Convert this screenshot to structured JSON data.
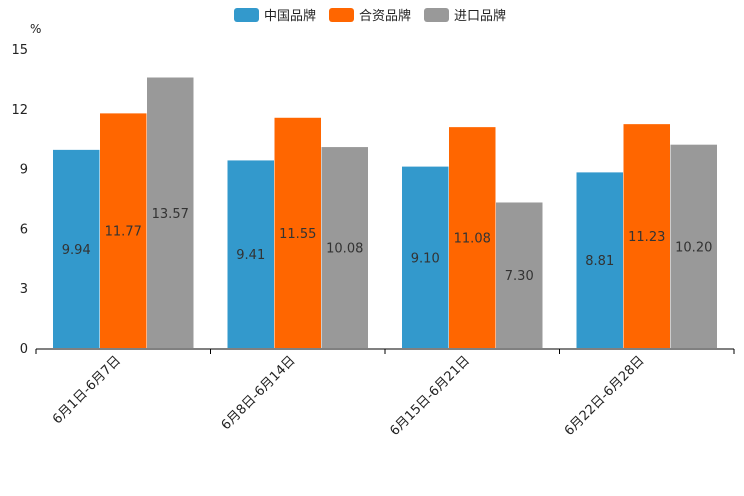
{
  "chart_data": {
    "type": "bar",
    "unit": "%",
    "categories": [
      "6月1日-6月7日",
      "6月8日-6月14日",
      "6月15日-6月21日",
      "6月22日-6月28日"
    ],
    "series": [
      {
        "name": "中国品牌",
        "color": "#3399cc",
        "values": [
          9.94,
          9.41,
          9.1,
          8.81
        ],
        "labels": [
          "9.94",
          "9.41",
          "9.10",
          "8.81"
        ]
      },
      {
        "name": "合资品牌",
        "color": "#ff6600",
        "values": [
          11.77,
          11.55,
          11.08,
          11.23
        ],
        "labels": [
          "11.77",
          "11.55",
          "11.08",
          "11.23"
        ]
      },
      {
        "name": "进口品牌",
        "color": "#999999",
        "values": [
          13.57,
          10.08,
          7.3,
          10.2
        ],
        "labels": [
          "13.57",
          "10.08",
          "7.30",
          "10.20"
        ]
      }
    ],
    "ylim": [
      0,
      15
    ],
    "yticks": [
      "0",
      "3",
      "6",
      "9",
      "12",
      "15"
    ],
    "legend_position": "top-center"
  }
}
